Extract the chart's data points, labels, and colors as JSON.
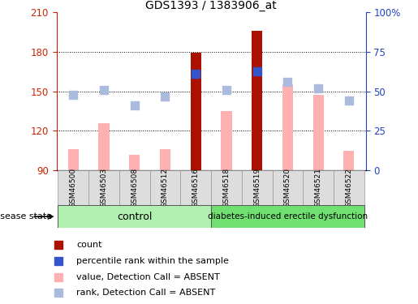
{
  "title": "GDS1393 / 1383906_at",
  "samples": [
    "GSM46500",
    "GSM46503",
    "GSM46508",
    "GSM46512",
    "GSM46516",
    "GSM46518",
    "GSM46519",
    "GSM46520",
    "GSM46521",
    "GSM46522"
  ],
  "n_control": 5,
  "n_diabetes": 5,
  "ylim_left": [
    90,
    210
  ],
  "ylim_right": [
    0,
    100
  ],
  "yticks_left": [
    90,
    120,
    150,
    180,
    210
  ],
  "yticks_right": [
    0,
    25,
    50,
    75,
    100
  ],
  "ytick_labels_right": [
    "0",
    "25",
    "50",
    "75",
    "100%"
  ],
  "dark_red_bars": [
    null,
    null,
    null,
    null,
    179,
    null,
    196,
    null,
    null,
    null
  ],
  "pink_bars": [
    106,
    126,
    102,
    106,
    null,
    135,
    null,
    155,
    147,
    105
  ],
  "blue_sq_y": [
    null,
    null,
    null,
    null,
    163,
    null,
    165,
    null,
    null,
    null
  ],
  "light_blue_sq_y": [
    147,
    151,
    139,
    146,
    null,
    151,
    null,
    157,
    152,
    143
  ],
  "grid_yticks": [
    120,
    150,
    180
  ],
  "dark_red": "#aa1100",
  "pink": "#ffb0b0",
  "blue": "#3355cc",
  "light_blue": "#aabbdd",
  "axis_color_left": "#cc2200",
  "axis_color_right": "#2244bb",
  "control_bg": "#b0f0b0",
  "diabetes_bg": "#70e070",
  "label_bg": "#dddddd",
  "bar_width": 0.35,
  "blue_sq_size": 55,
  "light_blue_sq_size": 55,
  "group_label_control": "control",
  "group_label_diabetes": "diabetes-induced erectile dysfunction",
  "disease_state_label": "disease state",
  "legend": [
    {
      "label": "count",
      "color": "#aa1100"
    },
    {
      "label": "percentile rank within the sample",
      "color": "#3355cc"
    },
    {
      "label": "value, Detection Call = ABSENT",
      "color": "#ffb0b0"
    },
    {
      "label": "rank, Detection Call = ABSENT",
      "color": "#aabbdd"
    }
  ]
}
